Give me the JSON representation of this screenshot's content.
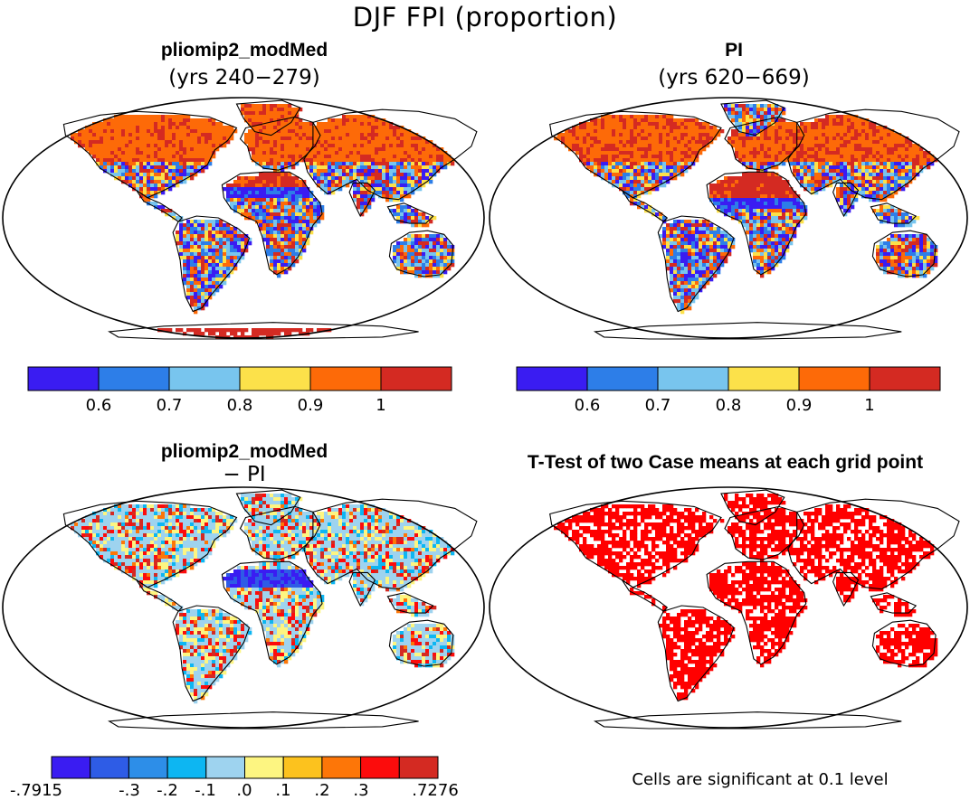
{
  "figure": {
    "title": "DJF FPI (proportion)",
    "colors": {
      "seq": [
        "#3a1cf2",
        "#2d7ee8",
        "#78c5ee",
        "#fce14a",
        "#fd6a08",
        "#d42a22"
      ],
      "div": [
        "#3a1cf2",
        "#2e5ce6",
        "#2d8ee8",
        "#0db6f2",
        "#9ed3ef",
        "#fdf581",
        "#fcc21e",
        "#fd7608",
        "#fc0c0c",
        "#d42a22"
      ],
      "sig": "#ff0000",
      "coast": "#000000"
    }
  },
  "panels": [
    {
      "title": "pliomip2_modMed",
      "subtitle": "(yrs 240−279)"
    },
    {
      "title": "PI",
      "subtitle": "(yrs 620−669)"
    },
    {
      "title": "pliomip2_modMed",
      "subtitle": "− PI"
    },
    {
      "title": "T-Test of two Case means at each grid point",
      "subtitle": ""
    }
  ],
  "colorbars": {
    "seq_ticks": [
      "0.6",
      "0.7",
      "0.8",
      "0.9",
      "1"
    ],
    "div_ticks": [
      "-.7915",
      "-.3",
      "-.2",
      "-.1",
      ".0",
      ".1",
      ".2",
      ".3",
      ".7276"
    ]
  },
  "footnote": "Cells are significant at 0.1 level"
}
